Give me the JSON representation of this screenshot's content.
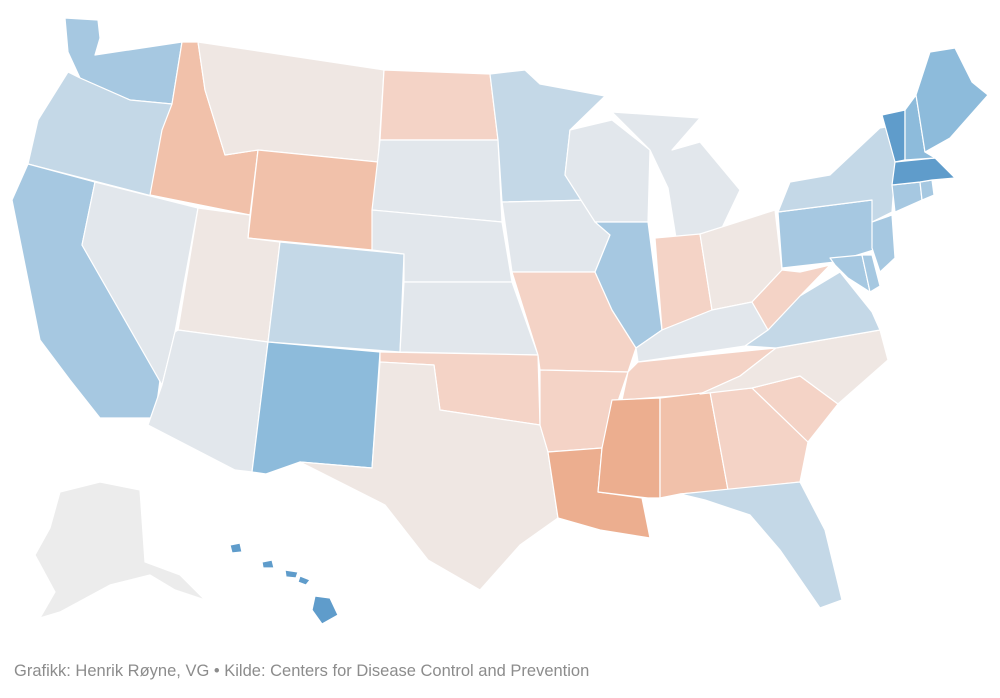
{
  "caption": {
    "credit": "Grafikk: Henrik Røyne, VG",
    "separator": "•",
    "source": "Kilde: Centers for Disease Control and Prevention"
  },
  "colors": {
    "dark_blue": "#5f9ccb",
    "mid_blue": "#8dbbdb",
    "light_blue": "#a6c8e1",
    "pale_blue": "#c4d8e7",
    "grey_blue": "#e2e7ec",
    "neutral": "#efe7e3",
    "pale_orange": "#f4d3c6",
    "light_orange": "#f1c1aa",
    "orange": "#ecae8f",
    "no_data": "#ececec"
  },
  "states": [
    {
      "name": "Washington",
      "fill": "light_blue"
    },
    {
      "name": "Oregon",
      "fill": "pale_blue"
    },
    {
      "name": "California",
      "fill": "light_blue"
    },
    {
      "name": "Nevada",
      "fill": "grey_blue"
    },
    {
      "name": "Idaho",
      "fill": "light_orange"
    },
    {
      "name": "Montana",
      "fill": "neutral"
    },
    {
      "name": "Wyoming",
      "fill": "light_orange"
    },
    {
      "name": "Utah",
      "fill": "neutral"
    },
    {
      "name": "Colorado",
      "fill": "pale_blue"
    },
    {
      "name": "Arizona",
      "fill": "grey_blue"
    },
    {
      "name": "New Mexico",
      "fill": "mid_blue"
    },
    {
      "name": "North Dakota",
      "fill": "pale_orange"
    },
    {
      "name": "South Dakota",
      "fill": "grey_blue"
    },
    {
      "name": "Nebraska",
      "fill": "grey_blue"
    },
    {
      "name": "Kansas",
      "fill": "grey_blue"
    },
    {
      "name": "Oklahoma",
      "fill": "pale_orange"
    },
    {
      "name": "Texas",
      "fill": "neutral"
    },
    {
      "name": "Minnesota",
      "fill": "pale_blue"
    },
    {
      "name": "Iowa",
      "fill": "grey_blue"
    },
    {
      "name": "Missouri",
      "fill": "pale_orange"
    },
    {
      "name": "Arkansas",
      "fill": "pale_orange"
    },
    {
      "name": "Louisiana",
      "fill": "orange"
    },
    {
      "name": "Wisconsin",
      "fill": "grey_blue"
    },
    {
      "name": "Illinois",
      "fill": "light_blue"
    },
    {
      "name": "Michigan",
      "fill": "grey_blue"
    },
    {
      "name": "Indiana",
      "fill": "pale_orange"
    },
    {
      "name": "Ohio",
      "fill": "neutral"
    },
    {
      "name": "Kentucky",
      "fill": "grey_blue"
    },
    {
      "name": "Tennessee",
      "fill": "pale_orange"
    },
    {
      "name": "Mississippi",
      "fill": "orange"
    },
    {
      "name": "Alabama",
      "fill": "light_orange"
    },
    {
      "name": "Georgia",
      "fill": "pale_orange"
    },
    {
      "name": "Florida",
      "fill": "pale_blue"
    },
    {
      "name": "South Carolina",
      "fill": "pale_orange"
    },
    {
      "name": "North Carolina",
      "fill": "neutral"
    },
    {
      "name": "Virginia",
      "fill": "pale_blue"
    },
    {
      "name": "West Virginia",
      "fill": "pale_orange"
    },
    {
      "name": "Pennsylvania",
      "fill": "light_blue"
    },
    {
      "name": "New York",
      "fill": "pale_blue"
    },
    {
      "name": "Maryland",
      "fill": "light_blue"
    },
    {
      "name": "Delaware",
      "fill": "light_blue"
    },
    {
      "name": "New Jersey",
      "fill": "light_blue"
    },
    {
      "name": "Connecticut",
      "fill": "light_blue"
    },
    {
      "name": "Rhode Island",
      "fill": "light_blue"
    },
    {
      "name": "Massachusetts",
      "fill": "dark_blue"
    },
    {
      "name": "Vermont",
      "fill": "dark_blue"
    },
    {
      "name": "New Hampshire",
      "fill": "mid_blue"
    },
    {
      "name": "Maine",
      "fill": "mid_blue"
    },
    {
      "name": "Alaska",
      "fill": "no_data"
    },
    {
      "name": "Hawaii",
      "fill": "dark_blue"
    }
  ]
}
